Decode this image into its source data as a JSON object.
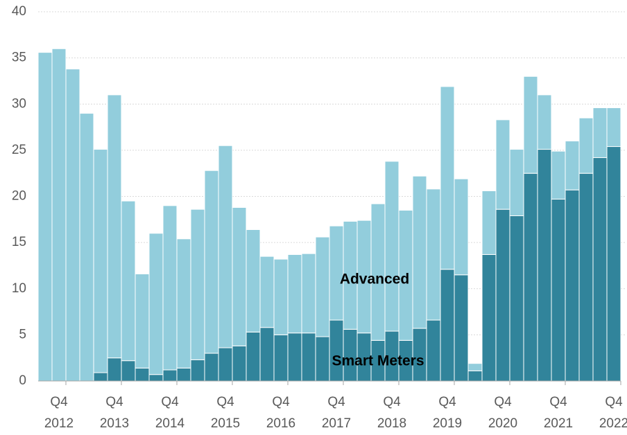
{
  "chart_data": {
    "type": "stacked_bar",
    "categories": [
      null,
      [
        "Q4",
        "2012"
      ],
      null,
      null,
      null,
      [
        "Q4",
        "2013"
      ],
      null,
      null,
      null,
      [
        "Q4",
        "2014"
      ],
      null,
      null,
      null,
      [
        "Q4",
        "2015"
      ],
      null,
      null,
      null,
      [
        "Q4",
        "2016"
      ],
      null,
      null,
      null,
      [
        "Q4",
        "2017"
      ],
      null,
      null,
      null,
      [
        "Q4",
        "2018"
      ],
      null,
      null,
      null,
      [
        "Q4",
        "2019"
      ],
      null,
      null,
      null,
      [
        "Q4",
        "2020"
      ],
      null,
      null,
      null,
      [
        "Q4",
        "2021"
      ],
      null,
      null,
      null,
      [
        "Q4",
        "2022"
      ]
    ],
    "series": [
      {
        "name": "Smart Meters",
        "color": "#31849b",
        "values": [
          0,
          0,
          0,
          0,
          0.9,
          2.5,
          2.2,
          1.4,
          0.7,
          1.2,
          1.4,
          2.3,
          3.0,
          3.6,
          3.8,
          5.3,
          5.8,
          5.0,
          5.2,
          5.2,
          4.8,
          6.6,
          5.6,
          5.2,
          4.4,
          5.4,
          4.4,
          5.7,
          6.6,
          12.1,
          11.5,
          1.1,
          13.7,
          18.6,
          17.9,
          22.5,
          25.1,
          19.7,
          20.7,
          22.5,
          24.2,
          25.4
        ]
      },
      {
        "name": "Advanced",
        "color": "#92cddc",
        "values": [
          35.6,
          36.0,
          33.8,
          29.0,
          24.2,
          28.5,
          17.3,
          10.2,
          15.3,
          17.8,
          14.0,
          16.3,
          19.8,
          21.9,
          15.0,
          11.1,
          7.7,
          8.2,
          8.5,
          8.6,
          10.8,
          10.2,
          11.7,
          12.2,
          14.8,
          18.4,
          14.1,
          16.5,
          14.2,
          19.8,
          10.4,
          0.8,
          6.9,
          9.7,
          7.2,
          10.5,
          5.9,
          5.2,
          5.3,
          6.0,
          5.4,
          4.2
        ]
      }
    ],
    "ylim": [
      0,
      40
    ],
    "yticks": [
      0,
      5,
      10,
      15,
      20,
      25,
      30,
      35,
      40
    ],
    "grid": true
  }
}
